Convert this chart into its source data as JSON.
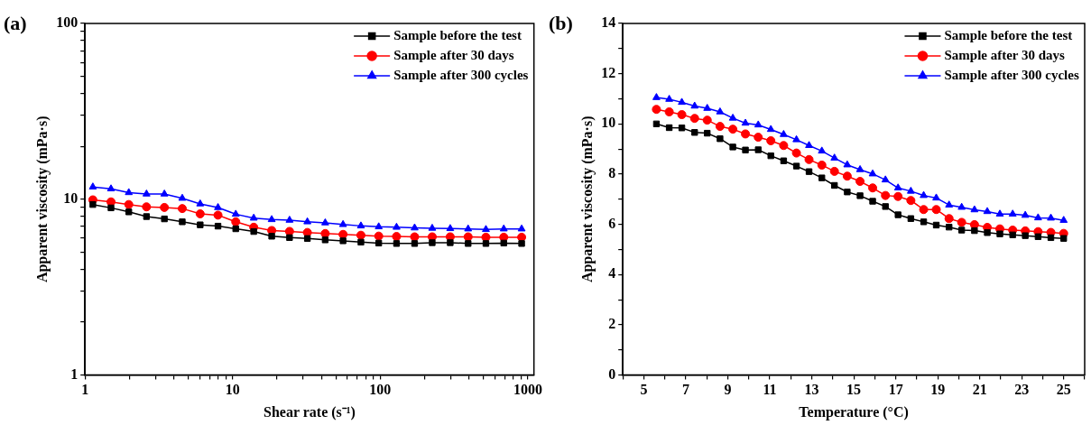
{
  "chart_data": [
    {
      "type": "line",
      "annotations": [
        "(a)"
      ],
      "xlabel": "Shear rate (s⁻¹)",
      "ylabel": "Apparent viscosity (mPa·s)",
      "log": "xy",
      "legend": "top right",
      "x": [
        1.13,
        1.5,
        1.98,
        2.61,
        3.45,
        4.56,
        6.03,
        7.96,
        10.5,
        13.9,
        18.4,
        24.3,
        32.1,
        42.4,
        56,
        74,
        97.7,
        129,
        171,
        225,
        298,
        394,
        520,
        687,
        908
      ],
      "xlim": [
        1,
        1100
      ],
      "ylim": [
        1,
        100
      ],
      "xticks": [
        1,
        {
          "value": 2,
          "label": null
        },
        {
          "value": 3,
          "label": null
        },
        {
          "value": 4,
          "label": null
        },
        {
          "value": 5,
          "label": null
        },
        {
          "value": 6,
          "label": null
        },
        {
          "value": 7,
          "label": null
        },
        {
          "value": 8,
          "label": null
        },
        {
          "value": 9,
          "label": null
        },
        10,
        {
          "value": 20,
          "label": null
        },
        {
          "value": 30,
          "label": null
        },
        {
          "value": 40,
          "label": null
        },
        {
          "value": 50,
          "label": null
        },
        {
          "value": 60,
          "label": null
        },
        {
          "value": 70,
          "label": null
        },
        {
          "value": 80,
          "label": null
        },
        {
          "value": 90,
          "label": null
        },
        100,
        {
          "value": 200,
          "label": null
        },
        {
          "value": 300,
          "label": null
        },
        {
          "value": 400,
          "label": null
        },
        {
          "value": 500,
          "label": null
        },
        {
          "value": 600,
          "label": null
        },
        {
          "value": 700,
          "label": null
        },
        {
          "value": 800,
          "label": null
        },
        {
          "value": 900,
          "label": null
        },
        1000
      ],
      "yticks": [
        1,
        {
          "value": 2,
          "label": null
        },
        {
          "value": 3,
          "label": null
        },
        {
          "value": 4,
          "label": null
        },
        {
          "value": 5,
          "label": null
        },
        {
          "value": 6,
          "label": null
        },
        {
          "value": 7,
          "label": null
        },
        {
          "value": 8,
          "label": null
        },
        {
          "value": 9,
          "label": null
        },
        10,
        {
          "value": 20,
          "label": null
        },
        {
          "value": 30,
          "label": null
        },
        {
          "value": 40,
          "label": null
        },
        {
          "value": 50,
          "label": null
        },
        {
          "value": 60,
          "label": null
        },
        {
          "value": 70,
          "label": null
        },
        {
          "value": 80,
          "label": null
        },
        {
          "value": 90,
          "label": null
        },
        100
      ],
      "series": [
        {
          "name": "Sample before the test",
          "color": "#000000",
          "marker": "square",
          "values": [
            9.33,
            8.93,
            8.47,
            7.97,
            7.73,
            7.44,
            7.15,
            7.03,
            6.79,
            6.55,
            6.16,
            6.05,
            5.98,
            5.87,
            5.8,
            5.7,
            5.63,
            5.6,
            5.6,
            5.66,
            5.66,
            5.6,
            5.6,
            5.63,
            5.6
          ]
        },
        {
          "name": "Sample after 30 days",
          "color": "#ff0000",
          "marker": "circle",
          "values": [
            9.92,
            9.66,
            9.33,
            9.05,
            8.98,
            8.85,
            8.26,
            8.12,
            7.44,
            6.93,
            6.64,
            6.56,
            6.47,
            6.38,
            6.31,
            6.24,
            6.17,
            6.14,
            6.11,
            6.11,
            6.11,
            6.11,
            6.08,
            6.08,
            6.08
          ]
        },
        {
          "name": "Sample after 300 cycles",
          "color": "#0000ff",
          "marker": "triangle",
          "values": [
            11.75,
            11.46,
            10.91,
            10.71,
            10.71,
            10.13,
            9.41,
            8.97,
            8.22,
            7.81,
            7.66,
            7.6,
            7.44,
            7.34,
            7.18,
            7.05,
            6.97,
            6.93,
            6.87,
            6.84,
            6.81,
            6.78,
            6.73,
            6.78,
            6.78
          ]
        }
      ]
    },
    {
      "type": "line",
      "annotations": [
        "(b)"
      ],
      "xlabel": "Temperature (°C)",
      "ylabel": "Apparent viscosity (mPa·s)",
      "legend": "top right",
      "x": [
        5.6,
        6.21,
        6.81,
        7.42,
        8.02,
        8.63,
        9.24,
        9.84,
        10.45,
        11.05,
        11.66,
        12.27,
        12.87,
        13.48,
        14.08,
        14.69,
        15.3,
        15.9,
        16.51,
        17.11,
        17.72,
        18.33,
        18.93,
        19.54,
        20.14,
        20.75,
        21.36,
        21.96,
        22.57,
        23.17,
        23.78,
        24.39,
        25
      ],
      "xlim": [
        4,
        26
      ],
      "ylim": [
        0,
        14
      ],
      "xticks": [
        {
          "value": 4,
          "label": null
        },
        5,
        {
          "value": 6,
          "label": null
        },
        7,
        {
          "value": 8,
          "label": null
        },
        9,
        {
          "value": 10,
          "label": null
        },
        11,
        {
          "value": 12,
          "label": null
        },
        13,
        {
          "value": 14,
          "label": null
        },
        15,
        {
          "value": 16,
          "label": null
        },
        17,
        {
          "value": 18,
          "label": null
        },
        19,
        {
          "value": 20,
          "label": null
        },
        21,
        {
          "value": 22,
          "label": null
        },
        23,
        {
          "value": 24,
          "label": null
        },
        25,
        {
          "value": 26,
          "label": null
        }
      ],
      "yticks": [
        0,
        {
          "value": 1,
          "label": null
        },
        2,
        {
          "value": 3,
          "label": null
        },
        4,
        {
          "value": 5,
          "label": null
        },
        6,
        {
          "value": 7,
          "label": null
        },
        8,
        {
          "value": 9,
          "label": null
        },
        10,
        {
          "value": 11,
          "label": null
        },
        12,
        {
          "value": 13,
          "label": null
        },
        14
      ],
      "series": [
        {
          "name": "Sample before the test",
          "color": "#000000",
          "marker": "square",
          "values": [
            10.0,
            9.85,
            9.84,
            9.66,
            9.63,
            9.41,
            9.08,
            8.96,
            8.97,
            8.73,
            8.53,
            8.32,
            8.1,
            7.85,
            7.55,
            7.29,
            7.14,
            6.92,
            6.71,
            6.38,
            6.23,
            6.1,
            5.97,
            5.89,
            5.77,
            5.75,
            5.67,
            5.62,
            5.58,
            5.55,
            5.51,
            5.47,
            5.44
          ]
        },
        {
          "name": "Sample after 30 days",
          "color": "#ff0000",
          "marker": "circle",
          "values": [
            10.58,
            10.48,
            10.37,
            10.22,
            10.15,
            9.9,
            9.79,
            9.6,
            9.47,
            9.33,
            9.14,
            8.84,
            8.58,
            8.36,
            8.11,
            7.92,
            7.71,
            7.45,
            7.15,
            7.11,
            6.95,
            6.59,
            6.59,
            6.23,
            6.08,
            5.99,
            5.88,
            5.82,
            5.77,
            5.74,
            5.71,
            5.68,
            5.64
          ]
        },
        {
          "name": "Sample after 300 cycles",
          "color": "#0000ff",
          "marker": "triangle",
          "values": [
            11.05,
            10.98,
            10.86,
            10.71,
            10.62,
            10.48,
            10.23,
            10.03,
            9.96,
            9.78,
            9.58,
            9.37,
            9.14,
            8.92,
            8.64,
            8.37,
            8.18,
            8.01,
            7.77,
            7.45,
            7.32,
            7.15,
            7.05,
            6.77,
            6.68,
            6.58,
            6.51,
            6.41,
            6.41,
            6.36,
            6.26,
            6.25,
            6.16
          ]
        }
      ]
    }
  ]
}
